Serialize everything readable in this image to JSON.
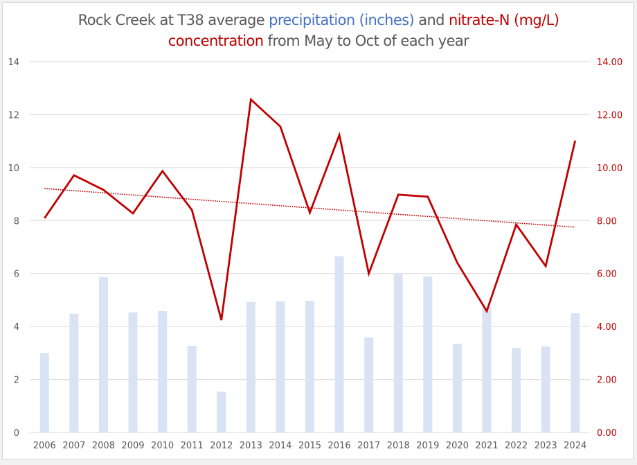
{
  "chart_data": {
    "type": "bar+line",
    "title_parts": [
      {
        "text": "Rock Creek at T38 average ",
        "color": "#595959"
      },
      {
        "text": "precipitation (inches)",
        "color": "#4472c4"
      },
      {
        "text": " and ",
        "color": "#595959"
      },
      {
        "text": "nitrate-N (mg/L)",
        "color": "#c00000"
      },
      {
        "text": "concentration",
        "color": "#c00000",
        "newline": true
      },
      {
        "text": " from May to Oct of each year",
        "color": "#595959"
      }
    ],
    "categories": [
      "2006",
      "2007",
      "2008",
      "2009",
      "2010",
      "2011",
      "2012",
      "2013",
      "2014",
      "2015",
      "2016",
      "2017",
      "2018",
      "2019",
      "2020",
      "2021",
      "2022",
      "2023",
      "2024"
    ],
    "series": [
      {
        "name": "precipitation (inches)",
        "type": "bar",
        "axis": "left",
        "color": "#dae3f3",
        "values": [
          3.0,
          4.48,
          5.86,
          4.53,
          4.58,
          3.27,
          1.54,
          4.92,
          4.95,
          4.97,
          6.65,
          3.59,
          6.0,
          5.89,
          3.35,
          4.71,
          3.19,
          3.25,
          4.5
        ]
      },
      {
        "name": "nitrate-N (mg/L)",
        "type": "line",
        "axis": "right",
        "color": "#c00000",
        "values": [
          8.09,
          9.71,
          9.16,
          8.27,
          9.87,
          8.4,
          4.24,
          12.57,
          11.55,
          8.3,
          11.23,
          6.0,
          8.98,
          8.9,
          6.41,
          4.58,
          7.85,
          6.28,
          11.02
        ]
      },
      {
        "name": "nitrate-N linear trend",
        "type": "trendline",
        "axis": "right",
        "color": "#c00000",
        "style": "dotted",
        "start": 9.21,
        "end": 7.75
      }
    ],
    "y_left": {
      "ticks": [
        "0",
        "2",
        "4",
        "6",
        "8",
        "10",
        "12",
        "14"
      ],
      "range": [
        0,
        14
      ]
    },
    "y_right": {
      "ticks": [
        "0.00",
        "2.00",
        "4.00",
        "6.00",
        "8.00",
        "10.00",
        "12.00",
        "14.00"
      ],
      "range": [
        0,
        14
      ],
      "color": "#c00000"
    },
    "grid": true,
    "legend": "none"
  }
}
